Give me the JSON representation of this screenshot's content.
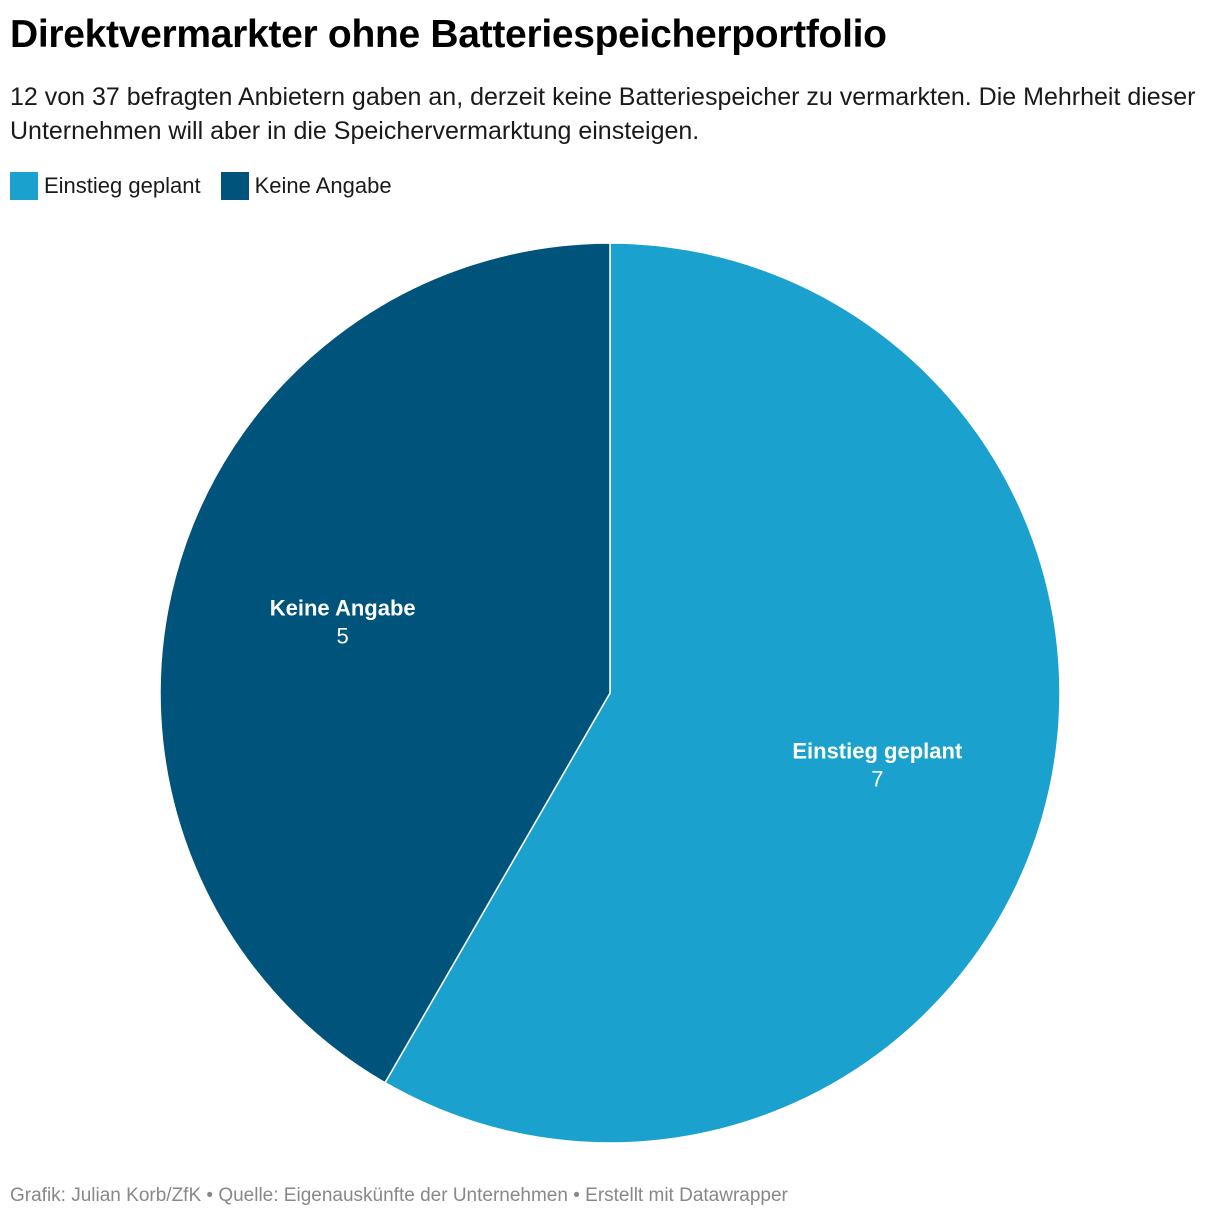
{
  "header": {
    "title": "Direktvermarkter ohne Batteriespeicherportfolio",
    "subtitle": "12 von 37 befragten Anbietern gaben an, derzeit keine Batteriespeicher zu vermarkten. Die Mehrheit dieser Unternehmen will aber in die Speichervermarktung einsteigen."
  },
  "legend": [
    {
      "label": "Einstieg geplant",
      "color": "#1aa1cd"
    },
    {
      "label": "Keine Angabe",
      "color": "#00537a"
    }
  ],
  "chart_data": {
    "type": "pie",
    "title": "Direktvermarkter ohne Batteriespeicherportfolio",
    "categories": [
      "Einstieg geplant",
      "Keine Angabe"
    ],
    "values": [
      7,
      5
    ],
    "colors": [
      "#1aa1cd",
      "#00537a"
    ],
    "legend_position": "top-left"
  },
  "footer": {
    "credit": "Grafik: Julian Korb/ZfK • Quelle: Eigenauskünfte der Unternehmen • Erstellt mit Datawrapper"
  }
}
